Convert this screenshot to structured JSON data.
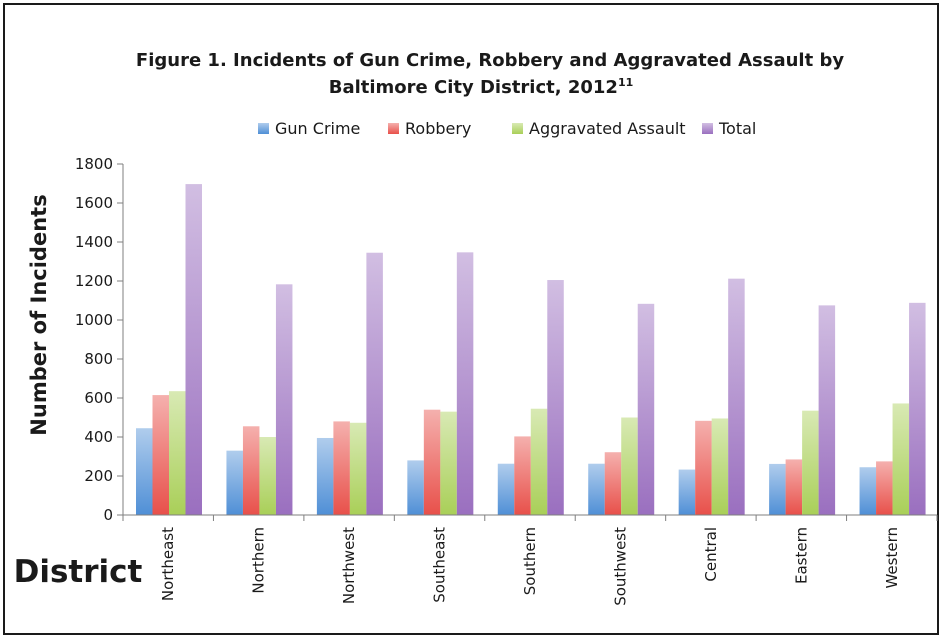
{
  "chart_data": {
    "type": "bar",
    "title": "Figure 1.  Incidents of Gun Crime, Robbery and Aggravated Assault by",
    "title_line2": "Baltimore City District, 2012",
    "title_superscript": "11",
    "xlabel": "District",
    "ylabel": "Number of Incidents",
    "ylim": [
      0,
      1800
    ],
    "yticks": [
      0,
      200,
      400,
      600,
      800,
      1000,
      1200,
      1400,
      1600,
      1800
    ],
    "legend_position": "top",
    "grid": false,
    "categories": [
      "Northeast",
      "Northern",
      "Northwest",
      "Southeast",
      "Southern",
      "Southwest",
      "Central",
      "Eastern",
      "Western"
    ],
    "series": [
      {
        "name": "Gun Crime",
        "color": "#4f8fd6",
        "values": [
          445,
          330,
          395,
          280,
          263,
          263,
          233,
          262,
          245
        ]
      },
      {
        "name": "Robbery",
        "color": "#e8504a",
        "values": [
          615,
          455,
          480,
          540,
          403,
          322,
          483,
          285,
          275
        ]
      },
      {
        "name": "Aggravated Assault",
        "color": "#a9cf58",
        "values": [
          635,
          400,
          473,
          530,
          545,
          500,
          495,
          535,
          572
        ]
      },
      {
        "name": "Total",
        "color": "#9a6fbf",
        "values": [
          1697,
          1183,
          1345,
          1347,
          1205,
          1083,
          1212,
          1075,
          1088
        ]
      }
    ]
  }
}
